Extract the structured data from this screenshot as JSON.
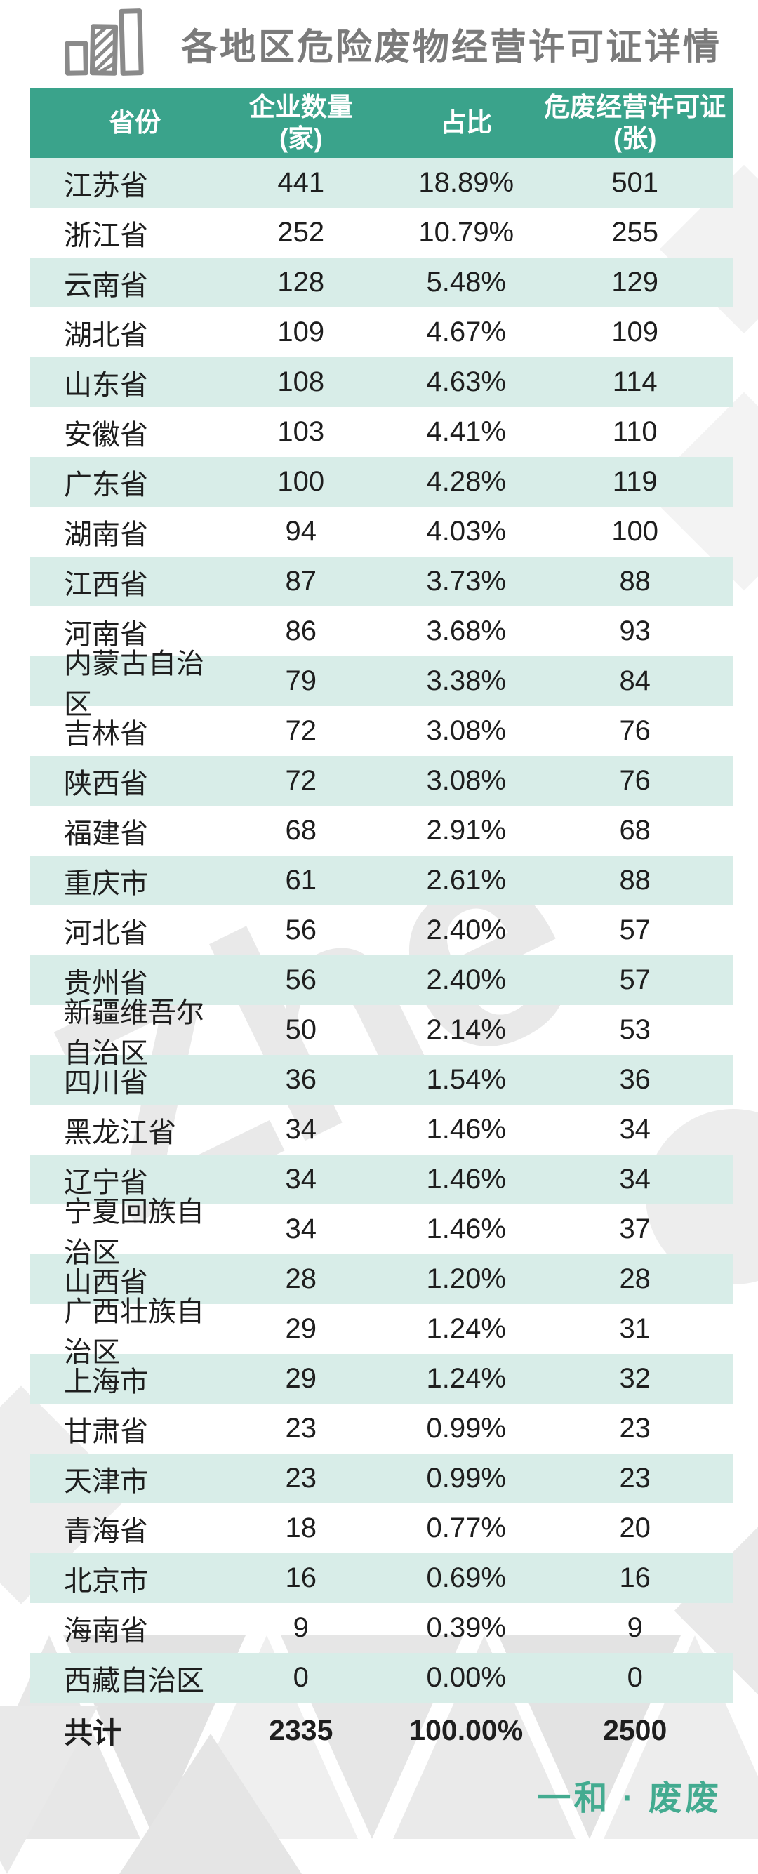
{
  "title": {
    "text": "各地区危险废物经营许可证详情",
    "icon": "bar-chart-icon"
  },
  "colors": {
    "header_bg": "#3aa38b",
    "row_alt_bg": "#d8ede8",
    "brand_green": "#43ab90",
    "title_gray": "#7b7b7b",
    "watermark_gray": "#e9e9e9"
  },
  "watermark_text": "Zhe",
  "table": {
    "columns": [
      {
        "label": "省份",
        "sub": ""
      },
      {
        "label": "企业数量",
        "sub": "(家)"
      },
      {
        "label": "占比",
        "sub": ""
      },
      {
        "label": "危废经营许可证",
        "sub": "(张)"
      }
    ],
    "rows": [
      {
        "province": "江苏省",
        "companies": "441",
        "share": "18.89%",
        "licenses": "501"
      },
      {
        "province": "浙江省",
        "companies": "252",
        "share": "10.79%",
        "licenses": "255"
      },
      {
        "province": "云南省",
        "companies": "128",
        "share": "5.48%",
        "licenses": "129"
      },
      {
        "province": "湖北省",
        "companies": "109",
        "share": "4.67%",
        "licenses": "109"
      },
      {
        "province": "山东省",
        "companies": "108",
        "share": "4.63%",
        "licenses": "114"
      },
      {
        "province": "安徽省",
        "companies": "103",
        "share": "4.41%",
        "licenses": "110"
      },
      {
        "province": "广东省",
        "companies": "100",
        "share": "4.28%",
        "licenses": "119"
      },
      {
        "province": "湖南省",
        "companies": "94",
        "share": "4.03%",
        "licenses": "100"
      },
      {
        "province": "江西省",
        "companies": "87",
        "share": "3.73%",
        "licenses": "88"
      },
      {
        "province": "河南省",
        "companies": "86",
        "share": "3.68%",
        "licenses": "93"
      },
      {
        "province": "内蒙古自治区",
        "companies": "79",
        "share": "3.38%",
        "licenses": "84"
      },
      {
        "province": "吉林省",
        "companies": "72",
        "share": "3.08%",
        "licenses": "76"
      },
      {
        "province": "陕西省",
        "companies": "72",
        "share": "3.08%",
        "licenses": "76"
      },
      {
        "province": "福建省",
        "companies": "68",
        "share": "2.91%",
        "licenses": "68"
      },
      {
        "province": "重庆市",
        "companies": "61",
        "share": "2.61%",
        "licenses": "88"
      },
      {
        "province": "河北省",
        "companies": "56",
        "share": "2.40%",
        "licenses": "57"
      },
      {
        "province": "贵州省",
        "companies": "56",
        "share": "2.40%",
        "licenses": "57"
      },
      {
        "province": "新疆维吾尔自治区",
        "companies": "50",
        "share": "2.14%",
        "licenses": "53"
      },
      {
        "province": "四川省",
        "companies": "36",
        "share": "1.54%",
        "licenses": "36"
      },
      {
        "province": "黑龙江省",
        "companies": "34",
        "share": "1.46%",
        "licenses": "34"
      },
      {
        "province": "辽宁省",
        "companies": "34",
        "share": "1.46%",
        "licenses": "34"
      },
      {
        "province": "宁夏回族自治区",
        "companies": "34",
        "share": "1.46%",
        "licenses": "37"
      },
      {
        "province": "山西省",
        "companies": "28",
        "share": "1.20%",
        "licenses": "28"
      },
      {
        "province": "广西壮族自治区",
        "companies": "29",
        "share": "1.24%",
        "licenses": "31"
      },
      {
        "province": "上海市",
        "companies": "29",
        "share": "1.24%",
        "licenses": "32"
      },
      {
        "province": "甘肃省",
        "companies": "23",
        "share": "0.99%",
        "licenses": "23"
      },
      {
        "province": "天津市",
        "companies": "23",
        "share": "0.99%",
        "licenses": "23"
      },
      {
        "province": "青海省",
        "companies": "18",
        "share": "0.77%",
        "licenses": "20"
      },
      {
        "province": "北京市",
        "companies": "16",
        "share": "0.69%",
        "licenses": "16"
      },
      {
        "province": "海南省",
        "companies": "9",
        "share": "0.39%",
        "licenses": "9"
      },
      {
        "province": "西藏自治区",
        "companies": "0",
        "share": "0.00%",
        "licenses": "0"
      }
    ],
    "total": {
      "label": "共计",
      "companies": "2335",
      "share": "100.00%",
      "licenses": "2500"
    }
  },
  "footer": {
    "brand": "一和 · 废废"
  },
  "chart_data": {
    "type": "table",
    "title": "各地区危险废物经营许可证详情",
    "categories": [
      "江苏省",
      "浙江省",
      "云南省",
      "湖北省",
      "山东省",
      "安徽省",
      "广东省",
      "湖南省",
      "江西省",
      "河南省",
      "内蒙古自治区",
      "吉林省",
      "陕西省",
      "福建省",
      "重庆市",
      "河北省",
      "贵州省",
      "新疆维吾尔自治区",
      "四川省",
      "黑龙江省",
      "辽宁省",
      "宁夏回族自治区",
      "山西省",
      "广西壮族自治区",
      "上海市",
      "甘肃省",
      "天津市",
      "青海省",
      "北京市",
      "海南省",
      "西藏自治区"
    ],
    "series": [
      {
        "name": "企业数量(家)",
        "values": [
          441,
          252,
          128,
          109,
          108,
          103,
          100,
          94,
          87,
          86,
          79,
          72,
          72,
          68,
          61,
          56,
          56,
          50,
          36,
          34,
          34,
          34,
          28,
          29,
          29,
          23,
          23,
          18,
          16,
          9,
          0
        ]
      },
      {
        "name": "占比",
        "values": [
          "18.89%",
          "10.79%",
          "5.48%",
          "4.67%",
          "4.63%",
          "4.41%",
          "4.28%",
          "4.03%",
          "3.73%",
          "3.68%",
          "3.38%",
          "3.08%",
          "3.08%",
          "2.91%",
          "2.61%",
          "2.40%",
          "2.40%",
          "2.14%",
          "1.54%",
          "1.46%",
          "1.46%",
          "1.46%",
          "1.20%",
          "1.24%",
          "1.24%",
          "0.99%",
          "0.99%",
          "0.77%",
          "0.69%",
          "0.39%",
          "0.00%"
        ]
      },
      {
        "name": "危废经营许可证(张)",
        "values": [
          501,
          255,
          129,
          109,
          114,
          110,
          119,
          100,
          88,
          93,
          84,
          76,
          76,
          68,
          88,
          57,
          57,
          53,
          36,
          34,
          34,
          37,
          28,
          31,
          32,
          23,
          23,
          20,
          16,
          9,
          0
        ]
      }
    ],
    "totals": {
      "企业数量(家)": 2335,
      "占比": "100.00%",
      "危废经营许可证(张)": 2500
    }
  }
}
